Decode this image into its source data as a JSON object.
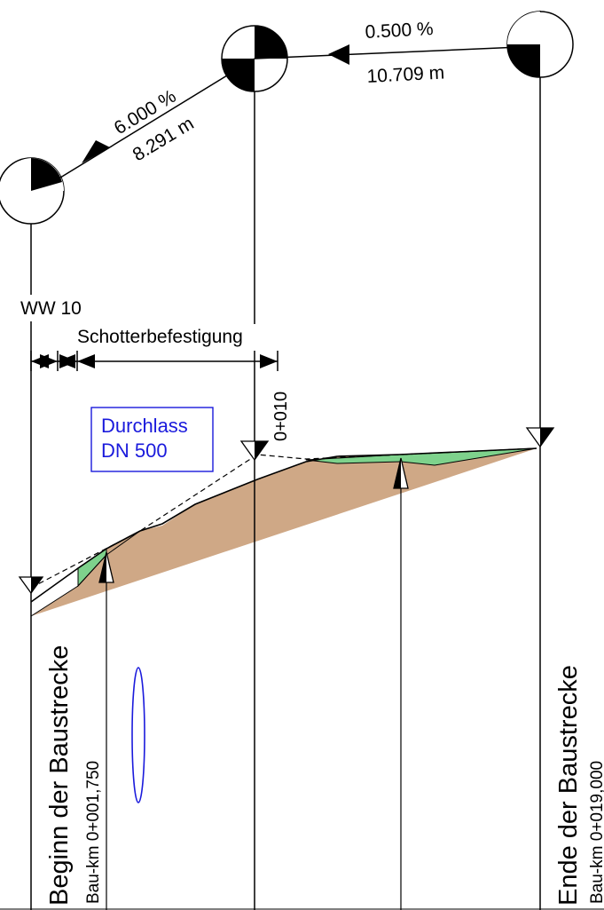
{
  "grades": [
    {
      "slope": "6.000 %",
      "length": "8.291 m"
    },
    {
      "slope": "0.500 %",
      "length": "10.709 m"
    }
  ],
  "section_labels": {
    "ww": "WW 10",
    "surface": "Schotterbefestigung"
  },
  "station_label": "0+010",
  "culvert": {
    "line1": "Durchlass",
    "line2": "DN 500"
  },
  "begin": {
    "title": "Beginn der Baustrecke",
    "km": "Bau-km 0+001,750"
  },
  "end": {
    "title": "Ende der Baustrecke",
    "km": "Bau-km 0+019,000"
  },
  "colors": {
    "embankment": "#cfa886",
    "fill": "#7ed28c",
    "culvert": "#1a1adc",
    "line": "#000000"
  }
}
